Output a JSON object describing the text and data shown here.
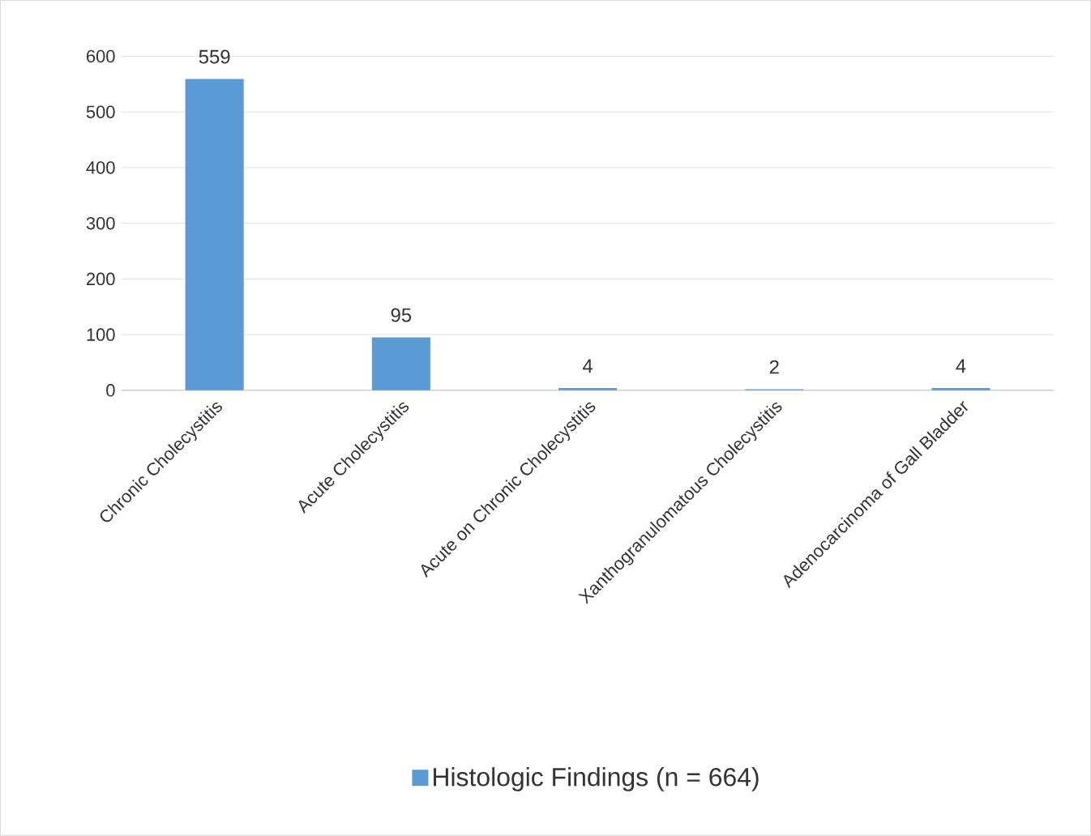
{
  "chart_data": {
    "type": "bar",
    "categories": [
      "Chronic Cholecystitis",
      "Acute Cholecystitis",
      "Acute on Chronic Cholecystitis",
      "Xanthogranulomatous Cholecystitis",
      "Adenocarcinoma of Gall Bladder"
    ],
    "series": [
      {
        "name": "Histologic Findings (n = 664)",
        "color": "#5b9bd5",
        "values": [
          559,
          95,
          4,
          2,
          4
        ]
      }
    ],
    "ylim": [
      0,
      600
    ],
    "yticks": [
      0,
      100,
      200,
      300,
      400,
      500,
      600
    ],
    "grid": "y",
    "legend": "bottom",
    "data_labels": true
  }
}
